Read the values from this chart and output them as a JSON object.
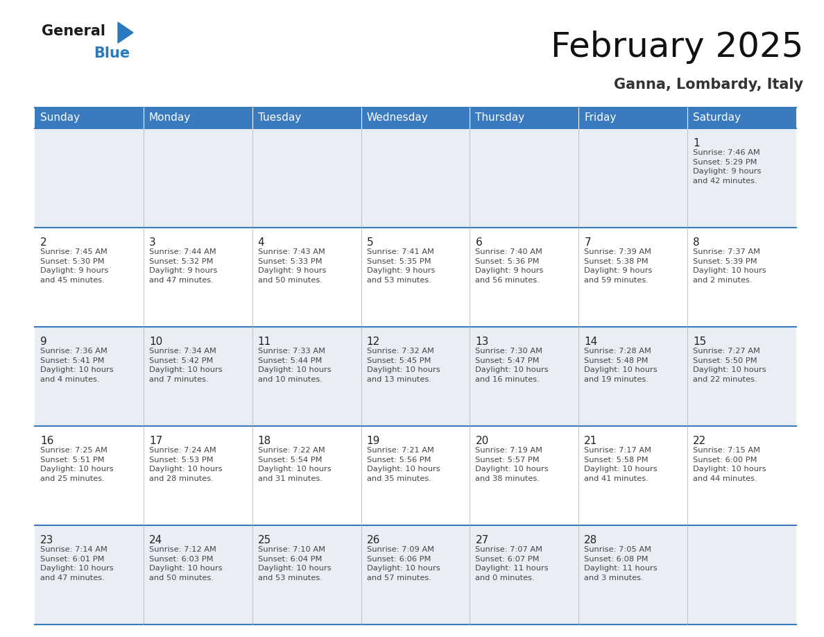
{
  "title": "February 2025",
  "subtitle": "Ganna, Lombardy, Italy",
  "header_bg": "#3a7abf",
  "header_text_color": "#ffffff",
  "day_headers": [
    "Sunday",
    "Monday",
    "Tuesday",
    "Wednesday",
    "Thursday",
    "Friday",
    "Saturday"
  ],
  "cell_bg_light": "#e8eef4",
  "cell_bg_white": "#ffffff",
  "row_line_color": "#3a7abf",
  "text_color": "#444444",
  "day_num_color": "#222222",
  "weeks": [
    [
      null,
      null,
      null,
      null,
      null,
      null,
      {
        "day": "1",
        "sunrise": "7:46 AM",
        "sunset": "5:29 PM",
        "daylight": "9 hours\nand 42 minutes."
      }
    ],
    [
      {
        "day": "2",
        "sunrise": "7:45 AM",
        "sunset": "5:30 PM",
        "daylight": "9 hours\nand 45 minutes."
      },
      {
        "day": "3",
        "sunrise": "7:44 AM",
        "sunset": "5:32 PM",
        "daylight": "9 hours\nand 47 minutes."
      },
      {
        "day": "4",
        "sunrise": "7:43 AM",
        "sunset": "5:33 PM",
        "daylight": "9 hours\nand 50 minutes."
      },
      {
        "day": "5",
        "sunrise": "7:41 AM",
        "sunset": "5:35 PM",
        "daylight": "9 hours\nand 53 minutes."
      },
      {
        "day": "6",
        "sunrise": "7:40 AM",
        "sunset": "5:36 PM",
        "daylight": "9 hours\nand 56 minutes."
      },
      {
        "day": "7",
        "sunrise": "7:39 AM",
        "sunset": "5:38 PM",
        "daylight": "9 hours\nand 59 minutes."
      },
      {
        "day": "8",
        "sunrise": "7:37 AM",
        "sunset": "5:39 PM",
        "daylight": "10 hours\nand 2 minutes."
      }
    ],
    [
      {
        "day": "9",
        "sunrise": "7:36 AM",
        "sunset": "5:41 PM",
        "daylight": "10 hours\nand 4 minutes."
      },
      {
        "day": "10",
        "sunrise": "7:34 AM",
        "sunset": "5:42 PM",
        "daylight": "10 hours\nand 7 minutes."
      },
      {
        "day": "11",
        "sunrise": "7:33 AM",
        "sunset": "5:44 PM",
        "daylight": "10 hours\nand 10 minutes."
      },
      {
        "day": "12",
        "sunrise": "7:32 AM",
        "sunset": "5:45 PM",
        "daylight": "10 hours\nand 13 minutes."
      },
      {
        "day": "13",
        "sunrise": "7:30 AM",
        "sunset": "5:47 PM",
        "daylight": "10 hours\nand 16 minutes."
      },
      {
        "day": "14",
        "sunrise": "7:28 AM",
        "sunset": "5:48 PM",
        "daylight": "10 hours\nand 19 minutes."
      },
      {
        "day": "15",
        "sunrise": "7:27 AM",
        "sunset": "5:50 PM",
        "daylight": "10 hours\nand 22 minutes."
      }
    ],
    [
      {
        "day": "16",
        "sunrise": "7:25 AM",
        "sunset": "5:51 PM",
        "daylight": "10 hours\nand 25 minutes."
      },
      {
        "day": "17",
        "sunrise": "7:24 AM",
        "sunset": "5:53 PM",
        "daylight": "10 hours\nand 28 minutes."
      },
      {
        "day": "18",
        "sunrise": "7:22 AM",
        "sunset": "5:54 PM",
        "daylight": "10 hours\nand 31 minutes."
      },
      {
        "day": "19",
        "sunrise": "7:21 AM",
        "sunset": "5:56 PM",
        "daylight": "10 hours\nand 35 minutes."
      },
      {
        "day": "20",
        "sunrise": "7:19 AM",
        "sunset": "5:57 PM",
        "daylight": "10 hours\nand 38 minutes."
      },
      {
        "day": "21",
        "sunrise": "7:17 AM",
        "sunset": "5:58 PM",
        "daylight": "10 hours\nand 41 minutes."
      },
      {
        "day": "22",
        "sunrise": "7:15 AM",
        "sunset": "6:00 PM",
        "daylight": "10 hours\nand 44 minutes."
      }
    ],
    [
      {
        "day": "23",
        "sunrise": "7:14 AM",
        "sunset": "6:01 PM",
        "daylight": "10 hours\nand 47 minutes."
      },
      {
        "day": "24",
        "sunrise": "7:12 AM",
        "sunset": "6:03 PM",
        "daylight": "10 hours\nand 50 minutes."
      },
      {
        "day": "25",
        "sunrise": "7:10 AM",
        "sunset": "6:04 PM",
        "daylight": "10 hours\nand 53 minutes."
      },
      {
        "day": "26",
        "sunrise": "7:09 AM",
        "sunset": "6:06 PM",
        "daylight": "10 hours\nand 57 minutes."
      },
      {
        "day": "27",
        "sunrise": "7:07 AM",
        "sunset": "6:07 PM",
        "daylight": "11 hours\nand 0 minutes."
      },
      {
        "day": "28",
        "sunrise": "7:05 AM",
        "sunset": "6:08 PM",
        "daylight": "11 hours\nand 3 minutes."
      },
      null
    ]
  ],
  "logo_color_general": "#1a1a1a",
  "logo_color_blue": "#2a7abf",
  "logo_triangle_color": "#2a7abf",
  "title_color": "#111111",
  "subtitle_color": "#333333",
  "fig_width": 11.88,
  "fig_height": 9.18,
  "dpi": 100
}
